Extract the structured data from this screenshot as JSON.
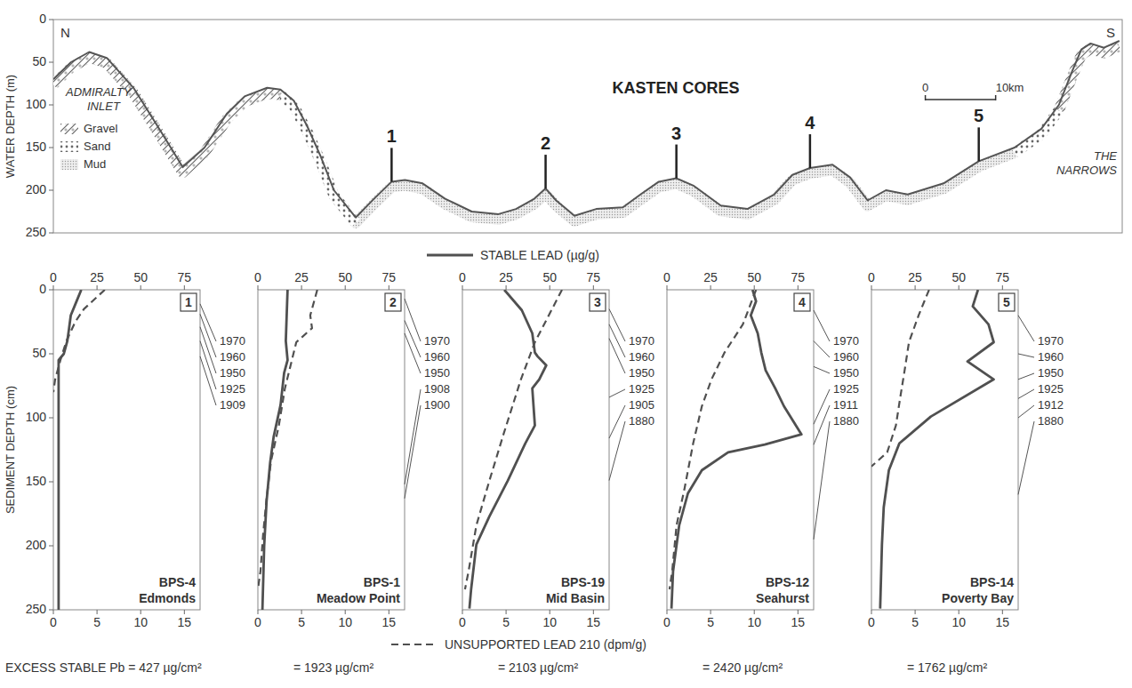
{
  "figure": {
    "legend_entries": [
      {
        "name": "STABLE LEAD (µg/g)",
        "line_style": "solid"
      },
      {
        "name": "UNSUPPORTED LEAD 210 (dpm/g)",
        "line_style": "dashed"
      }
    ]
  },
  "chart_data": [
    {
      "type": "profile",
      "title": "KASTEN CORES",
      "ylabel": "WATER DEPTH (m)",
      "ylim": [
        0,
        250
      ],
      "yticks": [
        0,
        50,
        100,
        150,
        200,
        250
      ],
      "xlim": [
        0,
        152
      ],
      "tick_labels": "y",
      "x": [
        0,
        2.5,
        5.1,
        7.6,
        11.4,
        15.2,
        18.4,
        21.5,
        24.7,
        27.2,
        30.4,
        32.3,
        34.2,
        36.1,
        38.0,
        39.9,
        43.0,
        45.6,
        48.1,
        50.0,
        52.5,
        55.7,
        59.5,
        63.3,
        65.8,
        68.4,
        70.0,
        71.5,
        74.1,
        77.2,
        81.0,
        83.5,
        86.1,
        88.6,
        91.1,
        94.9,
        98.7,
        102.5,
        105.1,
        107.6,
        110.8,
        113.3,
        115.8,
        118.4,
        121.5,
        126.6,
        131.6,
        136.7,
        140.5,
        143.0,
        144.9,
        146.2,
        147.5,
        149.4,
        151.6
      ],
      "values": [
        70,
        50,
        38,
        45,
        80,
        130,
        173,
        150,
        110,
        90,
        80,
        82,
        95,
        125,
        160,
        200,
        232,
        210,
        190,
        188,
        192,
        210,
        225,
        228,
        222,
        210,
        198,
        212,
        230,
        222,
        220,
        205,
        190,
        186,
        195,
        218,
        222,
        205,
        182,
        174,
        170,
        185,
        212,
        200,
        205,
        192,
        166,
        150,
        128,
        100,
        60,
        35,
        28,
        33,
        25
      ],
      "color": "#555555",
      "annotations": {
        "north": "N",
        "south": "S",
        "west": "ADMIRALTY INLET",
        "east": "THE NARROWS"
      },
      "legend_entries": [
        "Gravel",
        "Sand",
        "Mud"
      ],
      "sediment": [
        {
          "kind": "Mud",
          "from": 36,
          "to": 137
        },
        {
          "kind": "Sand",
          "from": 24,
          "to": 43
        },
        {
          "kind": "Sand",
          "from": 136,
          "to": 146
        },
        {
          "kind": "Gravel",
          "from": 0,
          "to": 34
        },
        {
          "kind": "Gravel",
          "from": 143,
          "to": 152
        }
      ],
      "cores": {
        "labels": [
          "1",
          "2",
          "3",
          "4",
          "5"
        ],
        "x": [
          48.1,
          70.0,
          88.6,
          107.6,
          131.6
        ],
        "depth": [
          190,
          198,
          186,
          174,
          166
        ]
      },
      "scale_bar": {
        "ticks": [
          0,
          {
            "value": 10,
            "label": "10km"
          }
        ]
      }
    },
    {
      "type": "line",
      "label": "1",
      "core": "BPS-4",
      "site": "Edmonds",
      "excess": "EXCESS STABLE Pb = 427 µg/cm²",
      "xlim": [
        0,
        84
      ],
      "xticks": [
        0,
        25,
        50,
        75
      ],
      "x2lim": [
        0,
        16.8
      ],
      "x2ticks": [
        0,
        5,
        10,
        15
      ],
      "ylim": [
        0,
        250
      ],
      "yticks": [
        0,
        50,
        100,
        150,
        200,
        250
      ],
      "ylabel": "SEDIMENT DEPTH (cm)",
      "series": [
        {
          "line_style": "solid",
          "color": "#505050",
          "depth": [
            0,
            10,
            20,
            30,
            40,
            50,
            55,
            60,
            100,
            250
          ],
          "values": [
            16,
            13,
            10,
            9,
            8,
            6,
            3,
            3,
            3,
            3
          ]
        },
        {
          "line_style": "dashed",
          "axis": "x2",
          "color": "#505050",
          "depth": [
            0,
            15,
            25,
            40,
            55,
            70,
            80
          ],
          "values": [
            5.9,
            3.5,
            2.5,
            1.5,
            0.8,
            0.2,
            0
          ]
        }
      ],
      "dates": {
        "years": [
          1970,
          1960,
          1950,
          1925,
          1909
        ],
        "depths": [
          11,
          19,
          29,
          40,
          52
        ]
      }
    },
    {
      "type": "line",
      "label": "2",
      "core": "BPS-1",
      "site": "Meadow Point",
      "excess": "= 1923 µg/cm²",
      "xlim": [
        0,
        84
      ],
      "xticks": [
        0,
        25,
        50,
        75
      ],
      "x2lim": [
        0,
        16.8
      ],
      "x2ticks": [
        0,
        5,
        10,
        15
      ],
      "ylim": [
        0,
        250
      ],
      "tick_labels": "x",
      "series": [
        {
          "line_style": "solid",
          "color": "#505050",
          "depth": [
            0,
            20,
            40,
            55,
            65,
            90,
            115,
            135,
            165,
            200,
            250
          ],
          "values": [
            17,
            16.5,
            16,
            17,
            15,
            13,
            9,
            7,
            5,
            3.6,
            2.6
          ]
        },
        {
          "line_style": "dashed",
          "axis": "x2",
          "color": "#505050",
          "depth": [
            0,
            20,
            30,
            41,
            63,
            77,
            106,
            134,
            163,
            191,
            220,
            234
          ],
          "values": [
            6.8,
            6.0,
            6.2,
            4.4,
            3.6,
            3.1,
            2.4,
            1.5,
            1.0,
            0.6,
            0.3,
            0
          ]
        }
      ],
      "dates": {
        "years": [
          1970,
          1960,
          1950,
          1908,
          1900
        ],
        "depths": [
          7,
          24,
          34,
          152,
          163
        ]
      }
    },
    {
      "type": "line",
      "label": "3",
      "core": "BPS-19",
      "site": "Mid Basin",
      "excess": "= 2103 µg/cm²",
      "xlim": [
        0,
        84
      ],
      "xticks": [
        0,
        25,
        50,
        75
      ],
      "x2lim": [
        0,
        16.8
      ],
      "x2ticks": [
        0,
        5,
        10,
        15
      ],
      "ylim": [
        0,
        250
      ],
      "tick_labels": "x",
      "series": [
        {
          "line_style": "solid",
          "color": "#505050",
          "depth": [
            0,
            16,
            34,
            49,
            52,
            59,
            70,
            77,
            106,
            120,
            149,
            177,
            199,
            234,
            249
          ],
          "values": [
            24,
            34,
            40,
            41.5,
            43,
            48,
            44,
            40,
            41.5,
            36,
            26,
            15.5,
            8,
            5,
            4
          ]
        },
        {
          "line_style": "dashed",
          "axis": "x2",
          "color": "#505050",
          "depth": [
            0,
            41,
            70,
            113,
            149,
            184,
            220,
            234
          ],
          "values": [
            11.4,
            8.3,
            6.7,
            4.7,
            3.1,
            1.6,
            0.7,
            0.3
          ]
        }
      ],
      "dates": {
        "years": [
          1970,
          1960,
          1950,
          1925,
          1905,
          1880
        ],
        "depths": [
          15,
          27,
          38,
          84,
          116,
          149
        ]
      }
    },
    {
      "type": "line",
      "label": "4",
      "core": "BPS-12",
      "site": "Seahurst",
      "excess": "= 2420 µg/cm²",
      "xlim": [
        0,
        84
      ],
      "xticks": [
        0,
        25,
        50,
        75
      ],
      "x2lim": [
        0,
        16.8
      ],
      "x2ticks": [
        0,
        5,
        10,
        15
      ],
      "ylim": [
        0,
        250
      ],
      "tick_labels": "x",
      "series": [
        {
          "line_style": "solid",
          "color": "#505050",
          "depth": [
            0,
            9,
            20,
            34,
            49,
            63,
            77,
            91,
            113,
            121,
            127,
            141,
            159,
            184,
            220,
            249
          ],
          "values": [
            49,
            51,
            48,
            52,
            54,
            56.5,
            62,
            67,
            77,
            56,
            35,
            20,
            12,
            7,
            3.5,
            2.6
          ]
        },
        {
          "line_style": "dashed",
          "axis": "x2",
          "color": "#505050",
          "depth": [
            0,
            27,
            49,
            70,
            91,
            120,
            156,
            184,
            220,
            234
          ],
          "values": [
            10.2,
            8.7,
            6.6,
            5.1,
            4.0,
            3.0,
            2.0,
            1.1,
            0.6,
            0.3
          ]
        }
      ],
      "dates": {
        "years": [
          1970,
          1960,
          1950,
          1925,
          1911,
          1880
        ],
        "depths": [
          16,
          40,
          60,
          105,
          121,
          195
        ]
      }
    },
    {
      "type": "line",
      "label": "5",
      "core": "BPS-14",
      "site": "Poverty Bay",
      "excess": "= 1762 µg/cm²",
      "xlim": [
        0,
        84
      ],
      "xticks": [
        0,
        25,
        50,
        75
      ],
      "x2lim": [
        0,
        16.8
      ],
      "x2ticks": [
        0,
        5,
        10,
        15
      ],
      "ylim": [
        0,
        250
      ],
      "tick_labels": "x",
      "series": [
        {
          "line_style": "solid",
          "color": "#505050",
          "depth": [
            0,
            13,
            27,
            41,
            56,
            70,
            99,
            120,
            141,
            170,
            199,
            249
          ],
          "values": [
            61,
            58,
            67,
            70,
            55,
            70,
            34,
            16,
            10,
            7,
            6,
            5
          ]
        },
        {
          "line_style": "dashed",
          "axis": "x2",
          "color": "#505050",
          "depth": [
            0,
            20,
            41,
            63,
            84,
            106,
            127,
            138
          ],
          "values": [
            6.6,
            5.4,
            4.3,
            3.8,
            3.3,
            2.8,
            1.8,
            0
          ]
        }
      ],
      "dates": {
        "years": [
          1970,
          1960,
          1950,
          1925,
          1912,
          1880
        ],
        "depths": [
          20,
          50,
          70,
          85,
          100,
          160
        ]
      }
    }
  ]
}
